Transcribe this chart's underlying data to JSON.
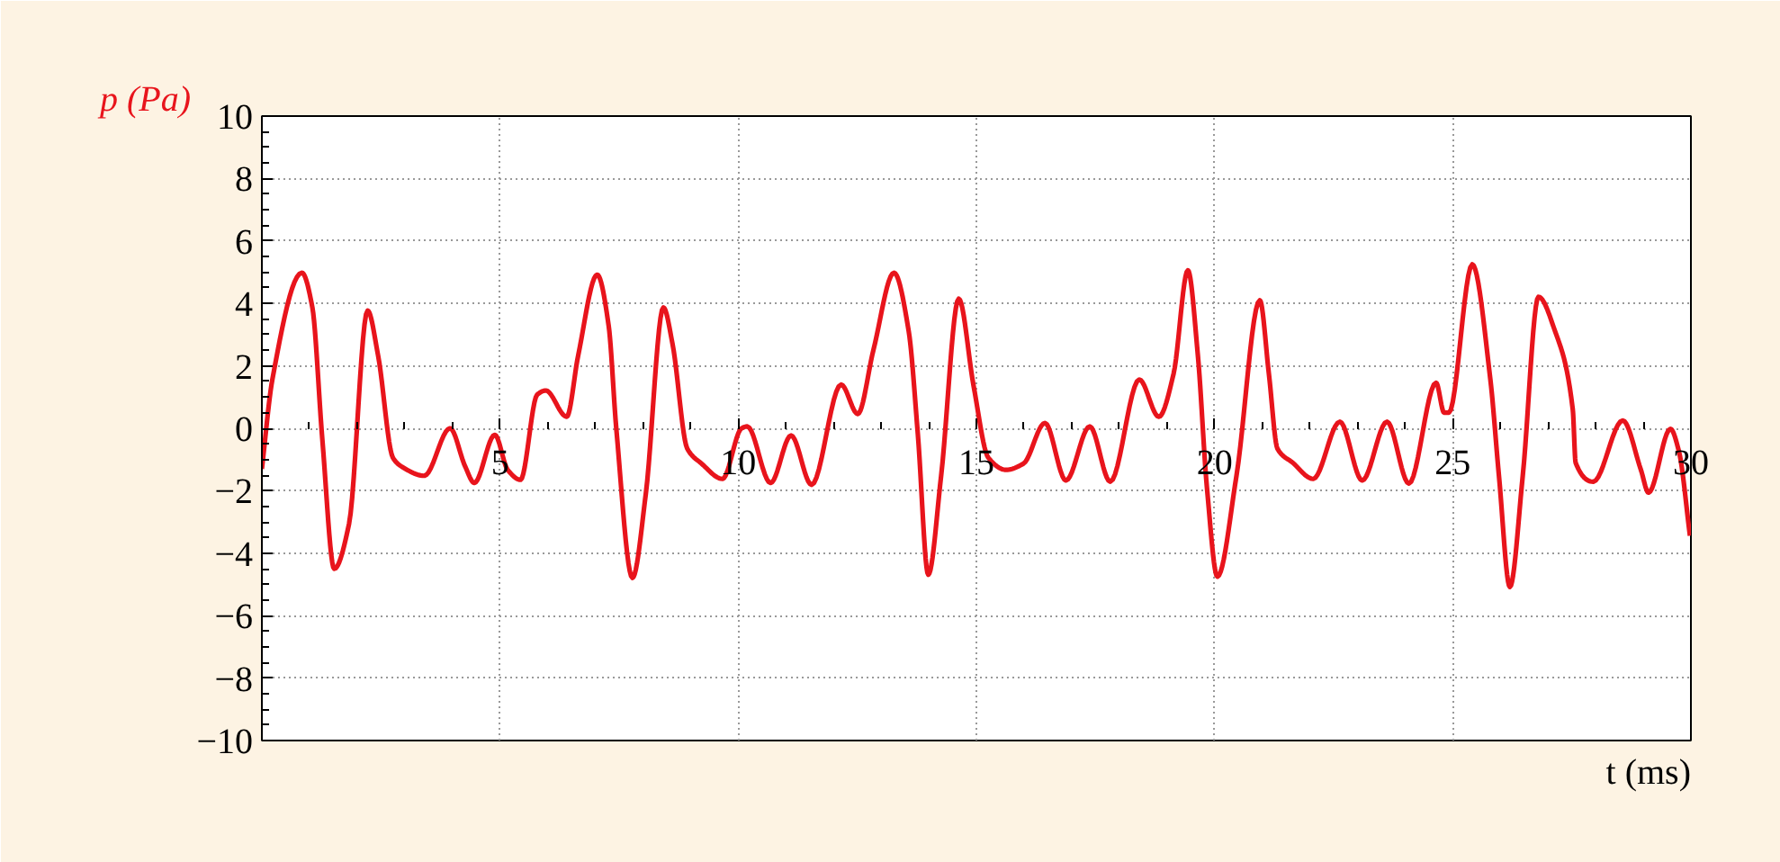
{
  "chart_data": {
    "type": "line",
    "xlabel": "t (ms)",
    "ylabel": "p (Pa)",
    "xlim": [
      0,
      30
    ],
    "ylim": [
      -10,
      10
    ],
    "xticks": [
      {
        "value": 0,
        "label": null
      },
      5,
      10,
      15,
      20,
      25,
      30
    ],
    "yticks": [
      -10,
      -8,
      -6,
      -4,
      -2,
      0,
      2,
      4,
      6,
      8,
      10
    ],
    "grid": true,
    "marker": "none",
    "line_style": "solid",
    "series": [
      {
        "color": "#e8141c",
        "x": [
          0,
          0.22,
          0.84,
          1.06,
          1.27,
          1.52,
          1.83,
          2.22,
          2.44,
          2.75,
          2.94,
          3.41,
          3.95,
          4.27,
          4.46,
          4.89,
          5.16,
          5.43,
          5.78,
          5.96,
          6.4,
          6.64,
          7.04,
          7.28,
          7.44,
          7.78,
          8.06,
          8.43,
          8.62,
          8.93,
          9.23,
          9.67,
          10.07,
          10.19,
          10.68,
          11.11,
          11.54,
          12.16,
          12.51,
          12.84,
          13.27,
          13.58,
          13.77,
          13.99,
          14.26,
          14.63,
          14.94,
          15.25,
          15.62,
          15.99,
          16.44,
          16.88,
          17.38,
          17.81,
          18.42,
          18.83,
          19.14,
          19.44,
          19.65,
          19.84,
          20.06,
          20.46,
          20.95,
          21.14,
          21.32,
          21.64,
          22.07,
          22.63,
          23.1,
          23.62,
          24.08,
          24.65,
          24.82,
          24.92,
          25.41,
          25.79,
          25.97,
          26.2,
          26.47,
          26.8,
          27.15,
          27.52,
          27.58,
          27.95,
          28.57,
          28.95,
          29.11,
          29.57,
          29.75,
          29.98
        ],
        "values": [
          -1.3,
          1.56,
          4.98,
          3.87,
          -0.37,
          -4.5,
          -3.06,
          3.77,
          2.33,
          -0.94,
          -1.23,
          -1.52,
          0,
          -1.23,
          -1.75,
          -0.21,
          -1.33,
          -1.65,
          1.08,
          1.21,
          0.37,
          2.33,
          4.92,
          3.29,
          0,
          -4.79,
          -2.1,
          3.87,
          2.71,
          -0.65,
          -1.13,
          -1.62,
          0,
          0.06,
          -1.75,
          -0.23,
          -1.81,
          1.4,
          0.46,
          2.52,
          4.98,
          3.1,
          -0.17,
          -4.69,
          -1.52,
          4.15,
          1.37,
          -0.94,
          -1.33,
          -1.13,
          0.17,
          -1.67,
          0.06,
          -1.71,
          1.56,
          0.37,
          1.75,
          5.06,
          2.33,
          -1.9,
          -4.75,
          -1.52,
          4.1,
          1.75,
          -0.65,
          -1.1,
          -1.62,
          0.21,
          -1.67,
          0.21,
          -1.77,
          1.46,
          0.5,
          0.5,
          5.25,
          1.56,
          -1.52,
          -5.08,
          -1.52,
          4.21,
          3.1,
          0.6,
          -1.1,
          -1.71,
          0.25,
          -1.33,
          -2.06,
          -0.02,
          -0.75,
          -3.44
        ]
      }
    ]
  }
}
